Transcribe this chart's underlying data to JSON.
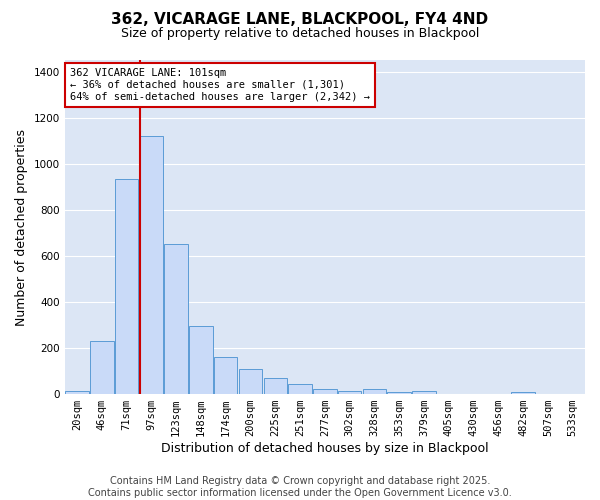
{
  "title": "362, VICARAGE LANE, BLACKPOOL, FY4 4ND",
  "subtitle": "Size of property relative to detached houses in Blackpool",
  "xlabel": "Distribution of detached houses by size in Blackpool",
  "ylabel": "Number of detached properties",
  "categories": [
    "20sqm",
    "46sqm",
    "71sqm",
    "97sqm",
    "123sqm",
    "148sqm",
    "174sqm",
    "200sqm",
    "225sqm",
    "251sqm",
    "277sqm",
    "302sqm",
    "328sqm",
    "353sqm",
    "379sqm",
    "405sqm",
    "430sqm",
    "456sqm",
    "482sqm",
    "507sqm",
    "533sqm"
  ],
  "values": [
    15,
    230,
    935,
    1120,
    650,
    295,
    160,
    107,
    70,
    42,
    20,
    12,
    20,
    10,
    12,
    0,
    0,
    0,
    8,
    0,
    0
  ],
  "bar_color": "#c9daf8",
  "bar_edge_color": "#5b9bd5",
  "vline_index": 3,
  "vline_color": "#cc0000",
  "annotation_line1": "362 VICARAGE LANE: 101sqm",
  "annotation_line2": "← 36% of detached houses are smaller (1,301)",
  "annotation_line3": "64% of semi-detached houses are larger (2,342) →",
  "annotation_box_color": "#cc0000",
  "ylim": [
    0,
    1450
  ],
  "yticks": [
    0,
    200,
    400,
    600,
    800,
    1000,
    1200,
    1400
  ],
  "background_color": "#dce6f5",
  "grid_color": "#ffffff",
  "footer1": "Contains HM Land Registry data © Crown copyright and database right 2025.",
  "footer2": "Contains public sector information licensed under the Open Government Licence v3.0.",
  "title_fontsize": 11,
  "subtitle_fontsize": 9,
  "axis_label_fontsize": 9,
  "tick_fontsize": 7.5,
  "footer_fontsize": 7
}
